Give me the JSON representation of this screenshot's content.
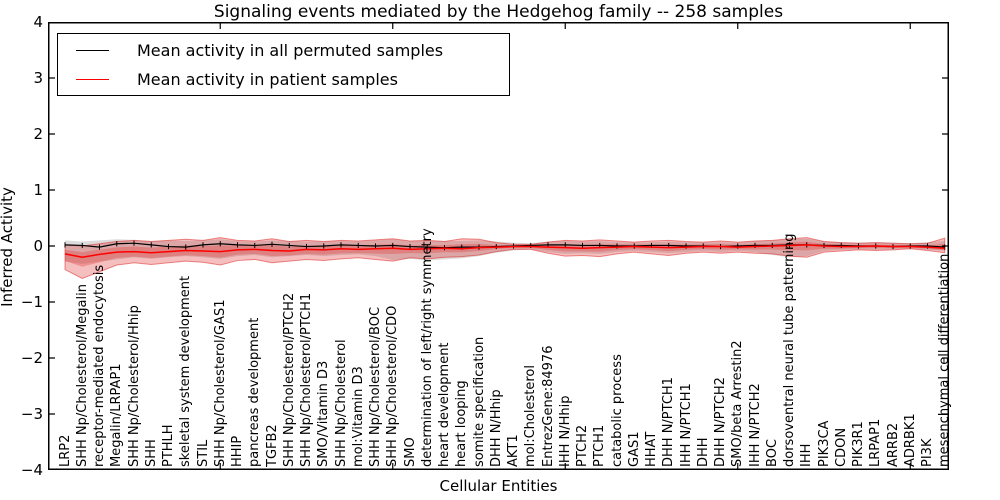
{
  "figure": {
    "title": "Signaling events mediated by the Hedgehog family -- 258 samples",
    "xlabel": "Cellular Entities",
    "ylabel": "Inferred Activity"
  },
  "chart_data": {
    "type": "line",
    "title": "Signaling events mediated by the Hedgehog family -- 258 samples",
    "xlabel": "Cellular Entities",
    "ylabel": "Inferred Activity",
    "ylim": [
      -4,
      4
    ],
    "yticks": [
      4,
      3,
      2,
      1,
      0,
      -1,
      -2,
      -3,
      -4
    ],
    "xtick_every": 10,
    "grid": false,
    "legend_position": "upper left",
    "categories": [
      "LRP2",
      "SHH Np/Cholesterol/Megalin",
      "receptor-mediated endocytosis",
      "Megalin/LRPAP1",
      "SHH Np/Cholesterol/Hhip",
      "SHH",
      "PTHLH",
      "skeletal system development",
      "STIL",
      "SHH Np/Cholesterol/GAS1",
      "HHIP",
      "pancreas development",
      "TGFB2",
      "SHH Np/Cholesterol/PTCH2",
      "SHH Np/Cholesterol/PTCH1",
      "SMO/Vitamin D3",
      "SHH Np/Cholesterol",
      "mol:Vitamin D3",
      "SHH Np/Cholesterol/BOC",
      "SHH Np/Cholesterol/CDO",
      "SMO",
      "determination of left/right symmetry",
      "heart development",
      "heart looping",
      "somite specification",
      "DHH N/Hhip",
      "AKT1",
      "mol:Cholesterol",
      "EntrezGene:84976",
      "IHH N/Hhip",
      "PTCH2",
      "PTCH1",
      "catabolic process",
      "GAS1",
      "HHAT",
      "DHH N/PTCH1",
      "IHH N/PTCH1",
      "DHH",
      "DHH N/PTCH2",
      "SMO/beta Arrestin2",
      "IHH N/PTCH2",
      "BOC",
      "dorsoventral neural tube patterning",
      "IHH",
      "PIK3CA",
      "CDON",
      "PIK3R1",
      "LRPAP1",
      "ARRB2",
      "ADRBK1",
      "PI3K",
      "mesenchymal cell differentiation"
    ],
    "series": [
      {
        "name": "Mean activity in all permuted samples",
        "color": "#000000",
        "band_color": "#808080",
        "band_opacity": 0.28,
        "marker": "vertical-dash",
        "values": [
          0.02,
          0.01,
          -0.02,
          0.04,
          0.05,
          0.02,
          -0.01,
          -0.02,
          0.02,
          0.04,
          0.02,
          0.01,
          0.03,
          0.01,
          -0.01,
          0.0,
          0.02,
          0.01,
          0.0,
          0.01,
          -0.01,
          -0.02,
          -0.03,
          -0.02,
          -0.02,
          -0.01,
          0.0,
          0.01,
          0.02,
          0.02,
          0.01,
          0.01,
          0.0,
          0.0,
          0.01,
          0.01,
          0.0,
          0.0,
          -0.01,
          0.0,
          0.01,
          0.01,
          0.02,
          0.02,
          0.01,
          0.01,
          0.0,
          0.0,
          -0.01,
          0.0,
          0.0,
          -0.02
        ],
        "band_upper": [
          0.1,
          0.08,
          0.1,
          0.12,
          0.11,
          0.09,
          0.1,
          0.09,
          0.1,
          0.12,
          0.09,
          0.08,
          0.1,
          0.09,
          0.08,
          0.08,
          0.09,
          0.08,
          0.1,
          0.12,
          0.09,
          0.1,
          0.09,
          0.09,
          0.1,
          0.08,
          0.06,
          0.05,
          0.08,
          0.09,
          0.08,
          0.09,
          0.07,
          0.06,
          0.07,
          0.08,
          0.07,
          0.06,
          0.07,
          0.06,
          0.09,
          0.1,
          0.12,
          0.13,
          0.08,
          0.07,
          0.06,
          0.07,
          0.06,
          0.05,
          0.07,
          0.09
        ],
        "band_lower": [
          -0.28,
          -0.32,
          -0.28,
          -0.24,
          -0.2,
          -0.23,
          -0.2,
          -0.18,
          -0.2,
          -0.23,
          -0.18,
          -0.16,
          -0.2,
          -0.18,
          -0.16,
          -0.18,
          -0.16,
          -0.15,
          -0.18,
          -0.25,
          -0.23,
          -0.26,
          -0.24,
          -0.22,
          -0.18,
          -0.12,
          -0.08,
          -0.06,
          -0.11,
          -0.14,
          -0.13,
          -0.14,
          -0.11,
          -0.09,
          -0.11,
          -0.13,
          -0.11,
          -0.09,
          -0.11,
          -0.09,
          -0.11,
          -0.16,
          -0.2,
          -0.18,
          -0.09,
          -0.07,
          -0.06,
          -0.07,
          -0.06,
          -0.05,
          -0.07,
          -0.08
        ]
      },
      {
        "name": "Mean activity in patient samples",
        "color": "#ff0000",
        "band_color": "#e02a2a",
        "band_opacity": 0.3,
        "values": [
          -0.14,
          -0.2,
          -0.15,
          -0.11,
          -0.1,
          -0.12,
          -0.1,
          -0.08,
          -0.09,
          -0.1,
          -0.07,
          -0.06,
          -0.08,
          -0.09,
          -0.06,
          -0.07,
          -0.05,
          -0.06,
          -0.05,
          -0.04,
          -0.06,
          -0.05,
          -0.04,
          -0.05,
          -0.03,
          -0.02,
          -0.01,
          -0.01,
          -0.02,
          -0.03,
          -0.04,
          -0.03,
          -0.02,
          -0.01,
          -0.02,
          -0.03,
          -0.02,
          -0.01,
          -0.01,
          -0.02,
          -0.01,
          0.0,
          0.01,
          0.02,
          0.0,
          -0.01,
          -0.01,
          0.0,
          -0.01,
          -0.01,
          -0.02,
          -0.04
        ],
        "band_upper": [
          0.02,
          0.0,
          0.04,
          0.08,
          0.1,
          0.08,
          0.1,
          0.12,
          0.1,
          0.15,
          0.1,
          0.09,
          0.13,
          0.08,
          0.1,
          0.08,
          0.1,
          0.09,
          0.11,
          0.13,
          0.09,
          0.1,
          0.08,
          0.13,
          0.12,
          0.06,
          0.03,
          0.03,
          0.07,
          0.1,
          0.09,
          0.11,
          0.09,
          0.07,
          0.09,
          0.1,
          0.08,
          0.07,
          0.09,
          0.07,
          0.09,
          0.1,
          0.13,
          0.15,
          0.08,
          0.06,
          0.05,
          0.06,
          0.05,
          0.04,
          0.05,
          0.14
        ],
        "band_lower": [
          -0.42,
          -0.58,
          -0.46,
          -0.34,
          -0.3,
          -0.33,
          -0.3,
          -0.27,
          -0.29,
          -0.34,
          -0.26,
          -0.24,
          -0.3,
          -0.27,
          -0.24,
          -0.26,
          -0.23,
          -0.21,
          -0.24,
          -0.27,
          -0.21,
          -0.23,
          -0.2,
          -0.19,
          -0.16,
          -0.1,
          -0.06,
          -0.06,
          -0.13,
          -0.18,
          -0.17,
          -0.19,
          -0.14,
          -0.11,
          -0.14,
          -0.17,
          -0.13,
          -0.11,
          -0.13,
          -0.11,
          -0.13,
          -0.14,
          -0.18,
          -0.2,
          -0.11,
          -0.09,
          -0.07,
          -0.08,
          -0.07,
          -0.05,
          -0.08,
          -0.12
        ]
      }
    ]
  }
}
